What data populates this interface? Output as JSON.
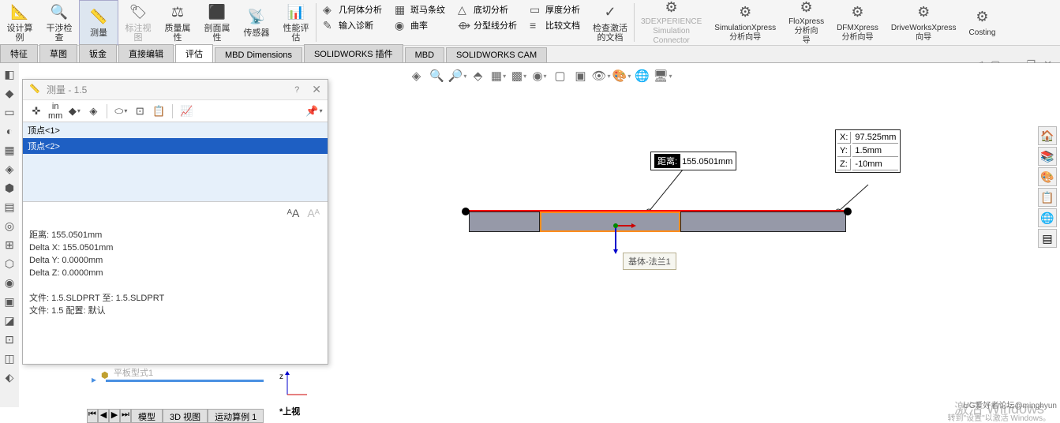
{
  "ribbon": {
    "items": [
      {
        "label": "设计算\n例",
        "icon": "📐"
      },
      {
        "label": "干涉检\n查",
        "icon": "🔍"
      },
      {
        "label": "测量",
        "icon": "📏",
        "active": true
      },
      {
        "label": "标注视\n图",
        "icon": "🏷",
        "grayed": true
      },
      {
        "label": "质量属\n性",
        "icon": "⚖"
      },
      {
        "label": "剖面属\n性",
        "icon": "⬛"
      },
      {
        "label": "传感器",
        "icon": "📡"
      },
      {
        "label": "性能评\n估",
        "icon": "📊"
      }
    ],
    "subs": [
      {
        "icon": "◈",
        "label": "几何体分析"
      },
      {
        "icon": "✎",
        "label": "输入诊断"
      },
      {
        "icon": "▦",
        "label": "斑马条纹"
      },
      {
        "icon": "◉",
        "label": "曲率"
      },
      {
        "icon": "△",
        "label": "底切分析"
      },
      {
        "icon": "⟴",
        "label": "分型线分析"
      },
      {
        "icon": "▭",
        "label": "厚度分析"
      },
      {
        "icon": "≡",
        "label": "比较文档"
      },
      {
        "icon": "✓",
        "label": "检查激活\n的文档"
      }
    ],
    "right": [
      {
        "label": "3DEXPERIENCE\nSimulation\nConnector",
        "grayed": true
      },
      {
        "label": "SimulationXpress\n分析向导"
      },
      {
        "label": "FloXpress\n分析向\n导"
      },
      {
        "label": "DFMXpress\n分析向导"
      },
      {
        "label": "DriveWorksXpress\n向导"
      },
      {
        "label": "Costing"
      }
    ]
  },
  "tabs": [
    "特征",
    "草图",
    "钣金",
    "直接编辑",
    "评估",
    "MBD Dimensions",
    "SOLIDWORKS 插件",
    "MBD",
    "SOLIDWORKS CAM"
  ],
  "active_tab": 4,
  "measure": {
    "title": "测量 - 1.5",
    "unit_top": "in",
    "unit_bot": "mm",
    "list": [
      "顶点<1>",
      "顶点<2>"
    ],
    "selected": 1,
    "distance": "距离: 155.0501mm",
    "dx": "Delta X: 155.0501mm",
    "dy": "Delta Y: 0.0000mm",
    "dz": "Delta Z: 0.0000mm",
    "file1": "文件:  1.5.SLDPRT  至:  1.5.SLDPRT",
    "file2": "文件:  1.5  配置:  默认"
  },
  "viewport": {
    "dist_label": "距离:",
    "dist_val": "155.0501mm",
    "coords": [
      {
        "k": "X:",
        "v": "97.525mm"
      },
      {
        "k": "Y:",
        "v": "1.5mm"
      },
      {
        "k": "Z:",
        "v": "-10mm"
      }
    ],
    "feature_label": "基体-法兰1",
    "triad_label": "*上视",
    "timeline_label": "平板型式1",
    "part_color": "#9699a8",
    "mid_border": "#ff8c1a",
    "red": "#ff0000"
  },
  "bottom_tabs": [
    "模型",
    "3D 视图",
    "运动算例 1"
  ],
  "watermark": "激活 Windows",
  "watermark2": "转到\"设置\"以激活 Windows。",
  "credit": "UG爱好者论坛@minghyun"
}
